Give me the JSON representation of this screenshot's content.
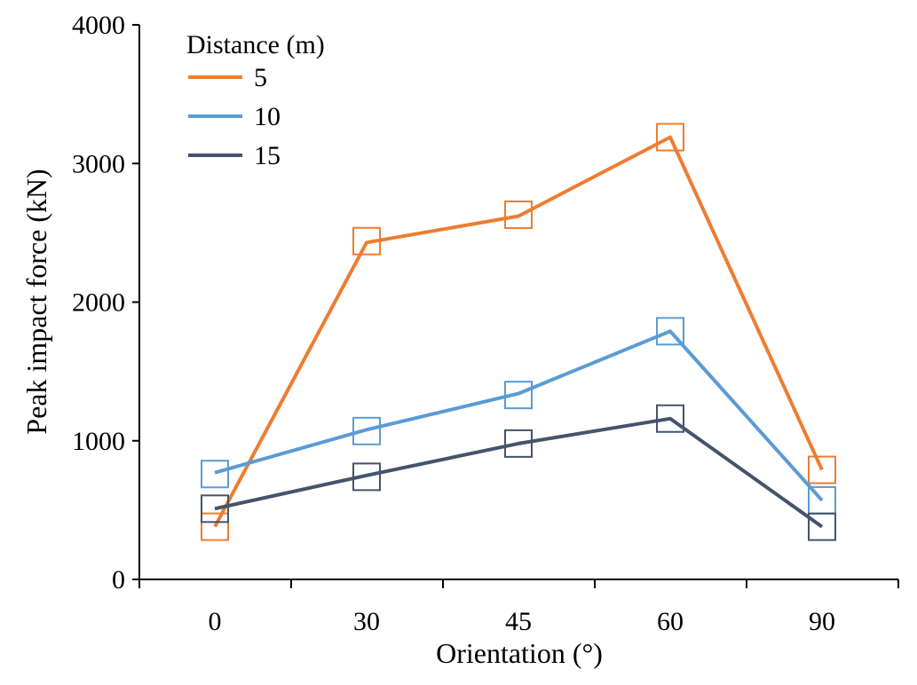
{
  "chart_data": {
    "type": "line",
    "title": "",
    "xlabel": "Orientation (°)",
    "ylabel": "Peak impact force (kN)",
    "categories": [
      "0",
      "30",
      "45",
      "60",
      "90"
    ],
    "ylim": [
      0,
      4000
    ],
    "yticks": [
      0,
      1000,
      2000,
      3000,
      4000
    ],
    "grid": false,
    "legend": {
      "title": "Distance (m)",
      "placement": "top-left"
    },
    "series": [
      {
        "name": "5",
        "color": "#ED7D31",
        "line_values": [
          380,
          2430,
          2620,
          3190,
          790
        ],
        "marker_values": [
          380,
          2440,
          2630,
          3190,
          790
        ]
      },
      {
        "name": "10",
        "color": "#5B9BD5",
        "line_values": [
          770,
          1080,
          1340,
          1790,
          570
        ],
        "marker_values": [
          760,
          1070,
          1330,
          1790,
          570
        ]
      },
      {
        "name": "15",
        "color": "#44546A",
        "line_values": [
          510,
          750,
          980,
          1160,
          380
        ],
        "marker_values": [
          510,
          740,
          980,
          1160,
          380
        ]
      }
    ]
  }
}
